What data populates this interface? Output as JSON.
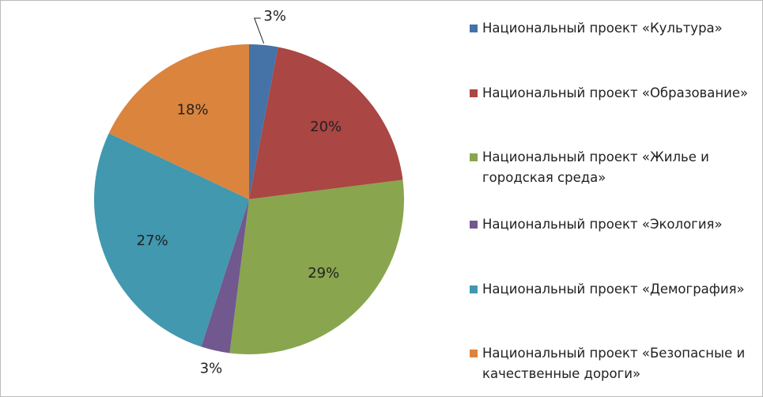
{
  "chart_data": {
    "type": "pie",
    "categories": [
      "Национальный проект «Культура»",
      "Национальный проект «Образование»",
      "Национальный проект «Жилье и городская среда»",
      "Национальный проект «Экология»",
      "Национальный проект «Демография»",
      "Национальный проект «Безопасные и качественные дороги»"
    ],
    "values": [
      3,
      20,
      29,
      3,
      27,
      18
    ],
    "value_labels": [
      "3%",
      "20%",
      "29%",
      "3%",
      "27%",
      "18%"
    ],
    "colors": [
      "#4572a7",
      "#aa4643",
      "#89a54e",
      "#71588f",
      "#4198af",
      "#db843d"
    ],
    "legend": "right"
  }
}
